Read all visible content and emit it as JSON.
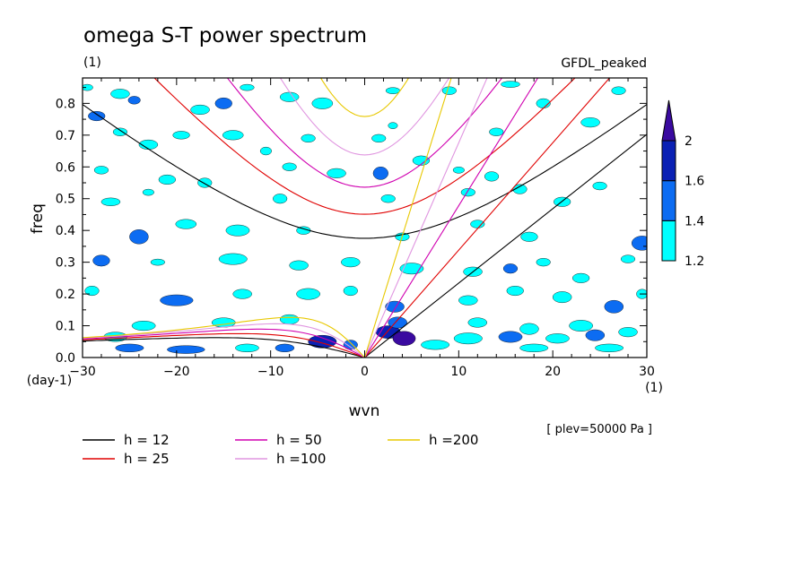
{
  "chart_data": {
    "type": "contour",
    "title": "omega S-T power spectrum",
    "units_label": "(1)",
    "dataset": "GFDL_peaked",
    "xlabel": "wvn",
    "ylabel": "freq",
    "y_units": "(day-1)",
    "x_units": "(1)",
    "level_note": "[ plev=50000 Pa ]",
    "xlim": [
      -30,
      30
    ],
    "ylim": [
      0,
      0.88
    ],
    "x_ticks": [
      -30,
      -20,
      -10,
      0,
      10,
      20,
      30
    ],
    "x_tick_labels": [
      "−30",
      "−20",
      "−10",
      "0",
      "10",
      "20",
      "30"
    ],
    "y_ticks": [
      0,
      0.1,
      0.2,
      0.3,
      0.4,
      0.5,
      0.6,
      0.7,
      0.8
    ],
    "y_tick_labels": [
      "0.0",
      "0.1",
      "0.2",
      "0.3",
      "0.4",
      "0.5",
      "0.6",
      "0.7",
      "0.8"
    ],
    "colorbar": {
      "levels": [
        1.2,
        1.4,
        1.6,
        2
      ],
      "level_labels": [
        "1.2",
        "1.4",
        "1.6",
        "2"
      ],
      "colors": [
        "#00ffff",
        "#0c6cf2",
        "#0a20b4",
        "#3a0aa0"
      ]
    },
    "dispersion_curves": [
      {
        "name": "h = 12",
        "h": 12,
        "color": "#000000"
      },
      {
        "name": "h = 25",
        "h": 25,
        "color": "#e00000"
      },
      {
        "name": "h = 50",
        "h": 50,
        "color": "#d000b0"
      },
      {
        "name": "h =100",
        "h": 100,
        "color": "#e096e0"
      },
      {
        "name": "h =200",
        "h": 200,
        "color": "#e8c800"
      }
    ],
    "patches": [
      {
        "x": -28.5,
        "y": 0.76,
        "w": 1.8,
        "h": 0.03,
        "lv": 2
      },
      {
        "x": -29.5,
        "y": 0.85,
        "w": 1.2,
        "h": 0.02,
        "lv": 1
      },
      {
        "x": -26,
        "y": 0.83,
        "w": 2,
        "h": 0.03,
        "lv": 1
      },
      {
        "x": -24.5,
        "y": 0.81,
        "w": 1.3,
        "h": 0.025,
        "lv": 2
      },
      {
        "x": -17.5,
        "y": 0.78,
        "w": 2,
        "h": 0.03,
        "lv": 1
      },
      {
        "x": -15,
        "y": 0.8,
        "w": 1.8,
        "h": 0.035,
        "lv": 2
      },
      {
        "x": -12.5,
        "y": 0.85,
        "w": 1.5,
        "h": 0.02,
        "lv": 1
      },
      {
        "x": -8,
        "y": 0.82,
        "w": 2,
        "h": 0.03,
        "lv": 1
      },
      {
        "x": -4.5,
        "y": 0.8,
        "w": 2.2,
        "h": 0.035,
        "lv": 1
      },
      {
        "x": 3,
        "y": 0.84,
        "w": 1.5,
        "h": 0.02,
        "lv": 1
      },
      {
        "x": 9,
        "y": 0.84,
        "w": 1.5,
        "h": 0.025,
        "lv": 1
      },
      {
        "x": 15.5,
        "y": 0.86,
        "w": 2,
        "h": 0.02,
        "lv": 1
      },
      {
        "x": 19,
        "y": 0.8,
        "w": 1.5,
        "h": 0.03,
        "lv": 1
      },
      {
        "x": 27,
        "y": 0.84,
        "w": 1.5,
        "h": 0.025,
        "lv": 1
      },
      {
        "x": -26,
        "y": 0.71,
        "w": 1.5,
        "h": 0.025,
        "lv": 1
      },
      {
        "x": -23,
        "y": 0.67,
        "w": 2,
        "h": 0.03,
        "lv": 1
      },
      {
        "x": -19.5,
        "y": 0.7,
        "w": 1.8,
        "h": 0.025,
        "lv": 1
      },
      {
        "x": -14,
        "y": 0.7,
        "w": 2.2,
        "h": 0.03,
        "lv": 1
      },
      {
        "x": -10.5,
        "y": 0.65,
        "w": 1.2,
        "h": 0.025,
        "lv": 1
      },
      {
        "x": -6,
        "y": 0.69,
        "w": 1.5,
        "h": 0.025,
        "lv": 1
      },
      {
        "x": 1.5,
        "y": 0.69,
        "w": 1.5,
        "h": 0.025,
        "lv": 1
      },
      {
        "x": 3,
        "y": 0.73,
        "w": 1,
        "h": 0.02,
        "lv": 1
      },
      {
        "x": 14,
        "y": 0.71,
        "w": 1.5,
        "h": 0.025,
        "lv": 1
      },
      {
        "x": 24,
        "y": 0.74,
        "w": 2,
        "h": 0.03,
        "lv": 1
      },
      {
        "x": -28,
        "y": 0.59,
        "w": 1.5,
        "h": 0.025,
        "lv": 1
      },
      {
        "x": -21,
        "y": 0.56,
        "w": 1.8,
        "h": 0.03,
        "lv": 1
      },
      {
        "x": -17,
        "y": 0.55,
        "w": 1.5,
        "h": 0.03,
        "lv": 1
      },
      {
        "x": -8,
        "y": 0.6,
        "w": 1.5,
        "h": 0.025,
        "lv": 1
      },
      {
        "x": -3,
        "y": 0.58,
        "w": 2,
        "h": 0.03,
        "lv": 1
      },
      {
        "x": 1.7,
        "y": 0.58,
        "w": 1.6,
        "h": 0.04,
        "lv": 2
      },
      {
        "x": 6,
        "y": 0.62,
        "w": 1.8,
        "h": 0.03,
        "lv": 1
      },
      {
        "x": 10,
        "y": 0.59,
        "w": 1.2,
        "h": 0.02,
        "lv": 1
      },
      {
        "x": 13.5,
        "y": 0.57,
        "w": 1.5,
        "h": 0.03,
        "lv": 1
      },
      {
        "x": 16.5,
        "y": 0.53,
        "w": 1.5,
        "h": 0.03,
        "lv": 1
      },
      {
        "x": -27,
        "y": 0.49,
        "w": 2,
        "h": 0.025,
        "lv": 1
      },
      {
        "x": -23,
        "y": 0.52,
        "w": 1.2,
        "h": 0.02,
        "lv": 1
      },
      {
        "x": -9,
        "y": 0.5,
        "w": 1.5,
        "h": 0.03,
        "lv": 1
      },
      {
        "x": 2.5,
        "y": 0.5,
        "w": 1.5,
        "h": 0.025,
        "lv": 1
      },
      {
        "x": 11,
        "y": 0.52,
        "w": 1.5,
        "h": 0.025,
        "lv": 1
      },
      {
        "x": 21,
        "y": 0.49,
        "w": 1.8,
        "h": 0.03,
        "lv": 1
      },
      {
        "x": 25,
        "y": 0.54,
        "w": 1.5,
        "h": 0.025,
        "lv": 1
      },
      {
        "x": -24,
        "y": 0.38,
        "w": 2,
        "h": 0.045,
        "lv": 2
      },
      {
        "x": -19,
        "y": 0.42,
        "w": 2.2,
        "h": 0.03,
        "lv": 1
      },
      {
        "x": -13.5,
        "y": 0.4,
        "w": 2.5,
        "h": 0.035,
        "lv": 1
      },
      {
        "x": -6.5,
        "y": 0.4,
        "w": 1.5,
        "h": 0.025,
        "lv": 1
      },
      {
        "x": 4,
        "y": 0.38,
        "w": 1.5,
        "h": 0.025,
        "lv": 1
      },
      {
        "x": 12,
        "y": 0.42,
        "w": 1.5,
        "h": 0.025,
        "lv": 1
      },
      {
        "x": 17.5,
        "y": 0.38,
        "w": 1.8,
        "h": 0.03,
        "lv": 1
      },
      {
        "x": 29.5,
        "y": 0.36,
        "w": 2.2,
        "h": 0.045,
        "lv": 2
      },
      {
        "x": -28,
        "y": 0.305,
        "w": 1.8,
        "h": 0.035,
        "lv": 2
      },
      {
        "x": -22,
        "y": 0.3,
        "w": 1.5,
        "h": 0.02,
        "lv": 1
      },
      {
        "x": -14,
        "y": 0.31,
        "w": 3,
        "h": 0.035,
        "lv": 1
      },
      {
        "x": -7,
        "y": 0.29,
        "w": 2,
        "h": 0.03,
        "lv": 1
      },
      {
        "x": -1.5,
        "y": 0.3,
        "w": 2,
        "h": 0.03,
        "lv": 1
      },
      {
        "x": 5,
        "y": 0.28,
        "w": 2.5,
        "h": 0.035,
        "lv": 1
      },
      {
        "x": 11.5,
        "y": 0.27,
        "w": 2,
        "h": 0.03,
        "lv": 1
      },
      {
        "x": 15.5,
        "y": 0.28,
        "w": 1.5,
        "h": 0.03,
        "lv": 2
      },
      {
        "x": 19,
        "y": 0.3,
        "w": 1.5,
        "h": 0.025,
        "lv": 1
      },
      {
        "x": 23,
        "y": 0.25,
        "w": 1.8,
        "h": 0.03,
        "lv": 1
      },
      {
        "x": 28,
        "y": 0.31,
        "w": 1.5,
        "h": 0.025,
        "lv": 1
      },
      {
        "x": -29,
        "y": 0.21,
        "w": 1.5,
        "h": 0.03,
        "lv": 1
      },
      {
        "x": -20,
        "y": 0.18,
        "w": 3.5,
        "h": 0.035,
        "lv": 2
      },
      {
        "x": -13,
        "y": 0.2,
        "w": 2,
        "h": 0.03,
        "lv": 1
      },
      {
        "x": -6,
        "y": 0.2,
        "w": 2.5,
        "h": 0.035,
        "lv": 1
      },
      {
        "x": -1.5,
        "y": 0.21,
        "w": 1.5,
        "h": 0.03,
        "lv": 1
      },
      {
        "x": 3.2,
        "y": 0.16,
        "w": 2,
        "h": 0.035,
        "lv": 2
      },
      {
        "x": 11,
        "y": 0.18,
        "w": 2,
        "h": 0.03,
        "lv": 1
      },
      {
        "x": 16,
        "y": 0.21,
        "w": 1.8,
        "h": 0.03,
        "lv": 1
      },
      {
        "x": 21,
        "y": 0.19,
        "w": 2,
        "h": 0.035,
        "lv": 1
      },
      {
        "x": 26.5,
        "y": 0.16,
        "w": 2,
        "h": 0.04,
        "lv": 2
      },
      {
        "x": 29.5,
        "y": 0.2,
        "w": 1.2,
        "h": 0.03,
        "lv": 1
      },
      {
        "x": -23.5,
        "y": 0.1,
        "w": 2.5,
        "h": 0.03,
        "lv": 1
      },
      {
        "x": -15,
        "y": 0.11,
        "w": 2.5,
        "h": 0.03,
        "lv": 1
      },
      {
        "x": -8,
        "y": 0.12,
        "w": 2,
        "h": 0.03,
        "lv": 1
      },
      {
        "x": 12,
        "y": 0.11,
        "w": 2,
        "h": 0.03,
        "lv": 1
      },
      {
        "x": 17.5,
        "y": 0.09,
        "w": 2,
        "h": 0.035,
        "lv": 1
      },
      {
        "x": 23,
        "y": 0.1,
        "w": 2.5,
        "h": 0.035,
        "lv": 1
      },
      {
        "x": 28,
        "y": 0.08,
        "w": 2,
        "h": 0.03,
        "lv": 1
      },
      {
        "x": -26.5,
        "y": 0.065,
        "w": 2.5,
        "h": 0.03,
        "lv": 1
      },
      {
        "x": 11,
        "y": 0.06,
        "w": 3,
        "h": 0.035,
        "lv": 1
      },
      {
        "x": 15.5,
        "y": 0.065,
        "w": 2.5,
        "h": 0.035,
        "lv": 2
      },
      {
        "x": 20.5,
        "y": 0.06,
        "w": 2.5,
        "h": 0.03,
        "lv": 1
      },
      {
        "x": 24.5,
        "y": 0.07,
        "w": 2,
        "h": 0.035,
        "lv": 2
      },
      {
        "x": -25,
        "y": 0.03,
        "w": 3,
        "h": 0.025,
        "lv": 2
      },
      {
        "x": -19,
        "y": 0.025,
        "w": 4,
        "h": 0.025,
        "lv": 2
      },
      {
        "x": -12.5,
        "y": 0.03,
        "w": 2.5,
        "h": 0.025,
        "lv": 1
      },
      {
        "x": -8.5,
        "y": 0.03,
        "w": 2,
        "h": 0.025,
        "lv": 2
      },
      {
        "x": -4.5,
        "y": 0.05,
        "w": 3,
        "h": 0.04,
        "lv": 3
      },
      {
        "x": -1.5,
        "y": 0.04,
        "w": 1.5,
        "h": 0.03,
        "lv": 2
      },
      {
        "x": 2.5,
        "y": 0.08,
        "w": 2.6,
        "h": 0.04,
        "lv": 3
      },
      {
        "x": 4.2,
        "y": 0.06,
        "w": 2.4,
        "h": 0.045,
        "lv": 4
      },
      {
        "x": 3.5,
        "y": 0.11,
        "w": 2,
        "h": 0.035,
        "lv": 2
      },
      {
        "x": 7.5,
        "y": 0.04,
        "w": 3,
        "h": 0.03,
        "lv": 1
      },
      {
        "x": 18,
        "y": 0.03,
        "w": 3,
        "h": 0.025,
        "lv": 1
      },
      {
        "x": 26,
        "y": 0.03,
        "w": 3,
        "h": 0.025,
        "lv": 1
      }
    ]
  }
}
